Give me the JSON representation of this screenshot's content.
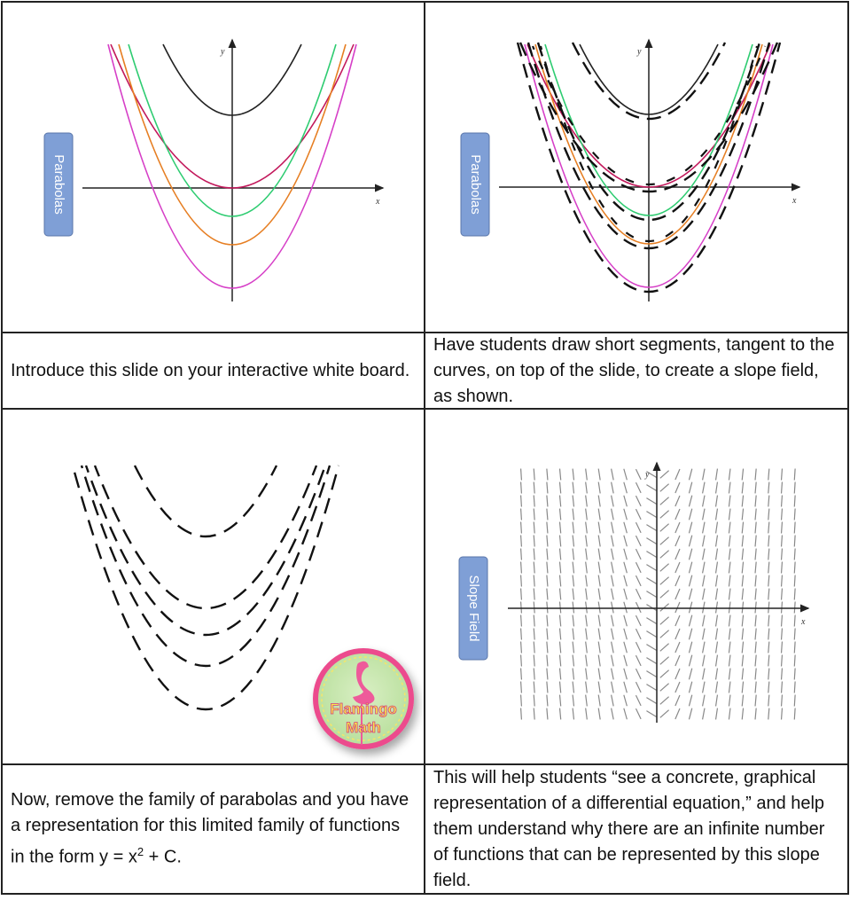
{
  "cells": [
    {
      "tab": "Parabolas",
      "x_label": "x",
      "y_label": "y"
    },
    {
      "tab": "Parabolas",
      "x_label": "x",
      "y_label": "y"
    },
    {
      "logo": [
        "Flamingo",
        "Math"
      ]
    },
    {
      "tab": "Slope Field",
      "x_label": "x",
      "y_label": "y"
    }
  ],
  "captions": [
    {
      "text": "Introduce this slide on your interactive white board."
    },
    {
      "text": "Have students draw short segments, tangent to the curves, on top of the slide, to create a slope field, as shown."
    },
    {
      "text": "Now, remove the family of parabolas and you have a representation for this limited family of functions in the form y = x",
      "sup": "2",
      "after": " + C."
    },
    {
      "text": "This will help students “see a concrete, graphical representation of a differential equation,” and help them understand why there are an infinite number of functions that can be represented by this slope field."
    }
  ]
}
